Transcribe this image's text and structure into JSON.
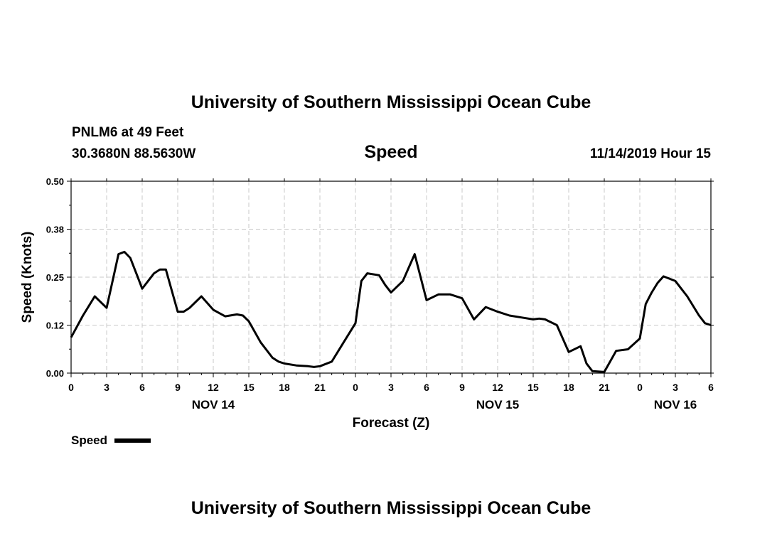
{
  "header": {
    "top_title": "University of Southern Mississippi Ocean Cube",
    "station": "PNLM6 at 49 Feet",
    "coords": "30.3680N 88.5630W",
    "datetime": "11/14/2019 Hour 15",
    "bottom_title": "University of Southern Mississippi Ocean Cube"
  },
  "chart_data": {
    "type": "line",
    "title": "Speed",
    "xlabel": "Forecast (Z)",
    "ylabel": "Speed (Knots)",
    "ylim": [
      0,
      0.5
    ],
    "xlim": [
      0,
      54
    ],
    "y_ticks": [
      "0.00",
      "0.12",
      "0.25",
      "0.38",
      "0.50"
    ],
    "y_tick_values": [
      0,
      0.125,
      0.25,
      0.375,
      0.5
    ],
    "x_tick_labels": [
      "0",
      "3",
      "6",
      "9",
      "12",
      "15",
      "18",
      "21",
      "0",
      "3",
      "6",
      "9",
      "12",
      "15",
      "18",
      "21",
      "0",
      "3",
      "6"
    ],
    "date_labels": [
      {
        "label": "NOV 14",
        "hour": 12
      },
      {
        "label": "NOV 15",
        "hour": 36
      },
      {
        "label": "NOV 16",
        "hour": 51
      }
    ],
    "grid": true,
    "legend": {
      "label": "Speed",
      "position": "bottom-left"
    },
    "series": [
      {
        "name": "Speed",
        "color": "#000000",
        "x": [
          0,
          1,
          2,
          3,
          4,
          4.5,
          5,
          5.5,
          6,
          7,
          7.5,
          8,
          9,
          9.5,
          10,
          11,
          12,
          13,
          14,
          14.5,
          15,
          16,
          17,
          17.5,
          18,
          19,
          20,
          20.5,
          21,
          22,
          23,
          24,
          24.5,
          25,
          26,
          26.5,
          27,
          28,
          29,
          30,
          31,
          32,
          33,
          34,
          35,
          36,
          37,
          38,
          39,
          39.5,
          40,
          41,
          42,
          43,
          43.5,
          44,
          45,
          46,
          47,
          48,
          48.5,
          49,
          49.5,
          50,
          51,
          51.5,
          52,
          53,
          53.5,
          54
        ],
        "values": [
          0.093,
          0.15,
          0.2,
          0.17,
          0.31,
          0.316,
          0.3,
          0.26,
          0.22,
          0.26,
          0.27,
          0.27,
          0.16,
          0.16,
          0.17,
          0.2,
          0.165,
          0.148,
          0.153,
          0.15,
          0.135,
          0.08,
          0.04,
          0.03,
          0.025,
          0.02,
          0.018,
          0.016,
          0.018,
          0.03,
          0.08,
          0.13,
          0.24,
          0.26,
          0.255,
          0.23,
          0.21,
          0.24,
          0.31,
          0.19,
          0.205,
          0.205,
          0.195,
          0.14,
          0.172,
          0.16,
          0.15,
          0.145,
          0.14,
          0.142,
          0.14,
          0.125,
          0.055,
          0.07,
          0.025,
          0.005,
          0.003,
          0.058,
          0.062,
          0.09,
          0.18,
          0.21,
          0.235,
          0.252,
          0.24,
          0.22,
          0.2,
          0.15,
          0.13,
          0.125
        ]
      }
    ]
  }
}
